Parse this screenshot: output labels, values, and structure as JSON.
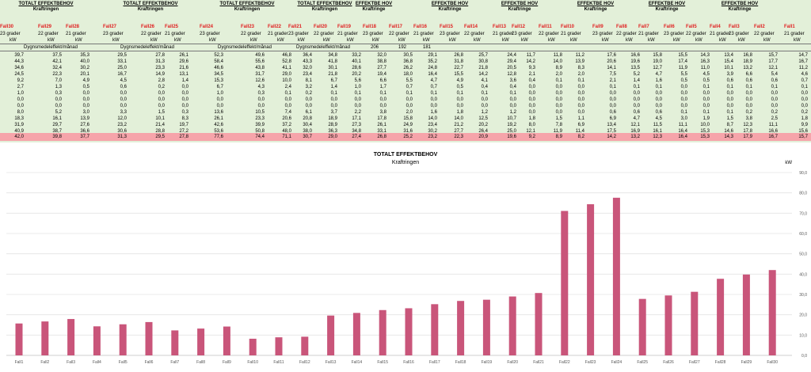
{
  "sheet": {
    "groups": [
      {
        "title": "TOTALT EFFEKTBEHOV",
        "subtitle": "Kraftringen",
        "cx": 58
      },
      {
        "title": "TOTALT EFFEKTBEHOV",
        "subtitle": "Kraftringen",
        "cx": 190
      },
      {
        "title": "TOTALT EFFEKTBEHOV",
        "subtitle": "Kraftringen",
        "cx": 312
      },
      {
        "title": "TOTALT EFFEKTBEHOV",
        "subtitle": "Kraftringen",
        "cx": 410
      },
      {
        "title": "EFFEKTBE HOV",
        "subtitle": "Kraftringe",
        "cx": 472
      },
      {
        "title": "EFFEKTBE HOV",
        "subtitle": "Kraftringe",
        "cx": 568
      },
      {
        "title": "EFFEKTBE HOV",
        "subtitle": "Kraftringe",
        "cx": 656
      },
      {
        "title": "EFFEKTBE HOV",
        "subtitle": "Kraftringe",
        "cx": 752
      },
      {
        "title": "EFFEKTBE HOV",
        "subtitle": "Kraftringe",
        "cx": 842
      },
      {
        "title": "EFFEKTBE HOV",
        "subtitle": "Kraftringe",
        "cx": 934
      }
    ],
    "fall_headers": [
      "Fall30",
      "Fall29",
      "Fall28",
      "Fall27",
      "Fall26",
      "Fall25",
      "Fall24",
      "Fall23",
      "Fall22",
      "Fall21",
      "Fall20",
      "Fall19",
      "Fall18",
      "Fall17",
      "Fall16",
      "Fall15",
      "Fall14",
      "Fall13",
      "Fall12",
      "Fall11",
      "Fall10",
      "Fall9",
      "Fall8",
      "Fall7",
      "Fall6",
      "Fall5",
      "Fall4",
      "Fall3",
      "Fall2",
      "Fall1"
    ],
    "temp_labels": [
      "23 grader",
      "22 grader",
      "21 grader"
    ],
    "unit": "kW",
    "dygn_label": "Dygnsmedeleffekt/månad",
    "dygn_values": [
      "206",
      "192",
      "181"
    ],
    "rows": [
      [
        "39,7",
        "37,5",
        "35,3",
        "29,5",
        "27,8",
        "26,1",
        "52,3",
        "49,6",
        "46,8",
        "36,4",
        "34,8",
        "33,2",
        "32,0",
        "30,5",
        "29,1",
        "26,8",
        "25,7",
        "24,4",
        "11,7",
        "11,8",
        "11,2",
        "17,6",
        "16,6",
        "15,8",
        "15,5",
        "14,3",
        "13,4",
        "16,8",
        "15,7",
        "14,7"
      ],
      [
        "44,3",
        "42,1",
        "40,0",
        "33,1",
        "31,3",
        "29,6",
        "58,4",
        "55,6",
        "52,8",
        "43,3",
        "41,8",
        "40,1",
        "38,8",
        "36,8",
        "35,2",
        "31,8",
        "30,8",
        "29,4",
        "14,2",
        "14,0",
        "13,9",
        "20,6",
        "19,6",
        "19,0",
        "17,4",
        "16,3",
        "15,4",
        "18,9",
        "17,7",
        "16,7"
      ],
      [
        "34,6",
        "32,4",
        "30,2",
        "25,0",
        "23,3",
        "21,6",
        "46,6",
        "43,8",
        "41,1",
        "32,0",
        "30,1",
        "28,6",
        "27,7",
        "26,2",
        "24,8",
        "22,7",
        "21,8",
        "20,5",
        "9,3",
        "8,9",
        "8,3",
        "14,1",
        "13,5",
        "12,7",
        "11,9",
        "11,0",
        "10,1",
        "13,2",
        "12,1",
        "11,2"
      ],
      [
        "24,5",
        "22,3",
        "20,1",
        "16,7",
        "14,9",
        "13,1",
        "34,5",
        "31,7",
        "29,0",
        "23,4",
        "21,8",
        "20,2",
        "19,4",
        "18,0",
        "16,4",
        "15,5",
        "14,2",
        "12,8",
        "2,1",
        "2,0",
        "2,0",
        "7,5",
        "5,2",
        "4,7",
        "5,5",
        "4,5",
        "3,9",
        "6,6",
        "5,4",
        "4,6"
      ],
      [
        "9,2",
        "7,0",
        "4,9",
        "4,5",
        "2,8",
        "1,4",
        "15,3",
        "12,6",
        "10,0",
        "8,1",
        "6,7",
        "5,6",
        "6,6",
        "5,5",
        "4,7",
        "4,9",
        "4,1",
        "3,6",
        "0,4",
        "0,1",
        "0,1",
        "2,1",
        "1,4",
        "1,6",
        "0,5",
        "0,5",
        "0,6",
        "0,6",
        "0,6",
        "0,7"
      ],
      [
        "2,7",
        "1,3",
        "0,5",
        "0,6",
        "0,2",
        "0,0",
        "6,7",
        "4,3",
        "2,4",
        "3,2",
        "1,4",
        "1,0",
        "1,7",
        "0,7",
        "0,7",
        "0,5",
        "0,4",
        "0,4",
        "0,0",
        "0,0",
        "0,0",
        "0,1",
        "0,1",
        "0,1",
        "0,0",
        "0,1",
        "0,1",
        "0,1",
        "0,1",
        "0,1"
      ],
      [
        "1,0",
        "0,3",
        "0,0",
        "0,0",
        "0,0",
        "0,0",
        "1,0",
        "0,3",
        "0,1",
        "0,2",
        "0,1",
        "0,1",
        "0,1",
        "0,1",
        "0,1",
        "0,1",
        "0,1",
        "0,1",
        "0,0",
        "0,0",
        "0,0",
        "0,0",
        "0,0",
        "0,0",
        "0,0",
        "0,0",
        "0,0",
        "0,0",
        "0,0",
        "0,0"
      ],
      [
        "0,0",
        "0,0",
        "0,0",
        "0,0",
        "0,0",
        "0,0",
        "0,0",
        "0,0",
        "0,0",
        "0,0",
        "0,0",
        "0,0",
        "0,0",
        "0,0",
        "0,0",
        "0,0",
        "0,0",
        "0,0",
        "0,0",
        "0,0",
        "0,0",
        "0,0",
        "0,0",
        "0,0",
        "0,0",
        "0,0",
        "0,0",
        "0,0",
        "0,0",
        "0,0"
      ],
      [
        "0,0",
        "0,0",
        "0,0",
        "0,0",
        "0,0",
        "0,0",
        "0,0",
        "0,0",
        "0,0",
        "0,0",
        "0,0",
        "0,0",
        "0,0",
        "0,0",
        "0,0",
        "0,0",
        "0,0",
        "0,0",
        "0,0",
        "0,0",
        "0,0",
        "0,0",
        "0,0",
        "0,0",
        "0,0",
        "0,0",
        "0,0",
        "0,0",
        "0,0",
        "0,0"
      ],
      [
        "8,0",
        "5,2",
        "3,0",
        "3,3",
        "1,5",
        "0,3",
        "13,6",
        "10,5",
        "7,4",
        "6,1",
        "3,7",
        "2,2",
        "3,8",
        "2,0",
        "1,6",
        "1,8",
        "1,2",
        "1,2",
        "0,0",
        "0,0",
        "0,0",
        "0,6",
        "0,6",
        "0,6",
        "0,1",
        "0,1",
        "0,1",
        "0,2",
        "0,2",
        "0,2"
      ],
      [
        "18,3",
        "16,1",
        "13,9",
        "12,0",
        "10,1",
        "8,3",
        "26,1",
        "23,3",
        "20,6",
        "20,8",
        "18,9",
        "17,1",
        "17,8",
        "15,8",
        "14,0",
        "14,0",
        "12,5",
        "10,7",
        "1,8",
        "1,5",
        "1,1",
        "6,9",
        "4,7",
        "4,5",
        "3,0",
        "1,9",
        "1,5",
        "3,8",
        "2,5",
        "1,8"
      ],
      [
        "31,9",
        "29,7",
        "27,6",
        "23,2",
        "21,4",
        "19,7",
        "42,6",
        "39,9",
        "37,2",
        "30,4",
        "28,9",
        "27,3",
        "26,1",
        "24,9",
        "23,4",
        "21,2",
        "20,2",
        "19,2",
        "8,0",
        "7,8",
        "6,9",
        "13,4",
        "12,1",
        "11,5",
        "11,1",
        "10,0",
        "8,7",
        "12,3",
        "11,1",
        "9,9"
      ],
      [
        "40,9",
        "38,7",
        "36,6",
        "30,6",
        "28,8",
        "27,2",
        "53,6",
        "50,8",
        "48,0",
        "38,0",
        "36,3",
        "34,8",
        "33,1",
        "31,6",
        "30,2",
        "27,7",
        "26,4",
        "25,0",
        "12,1",
        "11,9",
        "11,4",
        "17,5",
        "16,9",
        "16,1",
        "16,4",
        "15,3",
        "14,6",
        "17,8",
        "16,6",
        "15,6"
      ]
    ],
    "total_row": [
      "42,0",
      "39,8",
      "37,7",
      "31,3",
      "29,5",
      "27,8",
      "77,6",
      "74,4",
      "71,1",
      "30,7",
      "29,0",
      "27,4",
      "26,8",
      "25,2",
      "23,2",
      "22,3",
      "20,9",
      "19,6",
      "9,2",
      "8,9",
      "8,2",
      "14,2",
      "13,2",
      "12,3",
      "16,4",
      "15,3",
      "14,3",
      "17,9",
      "16,7",
      "15,7"
    ]
  },
  "chart_data": {
    "type": "bar",
    "title": "TOTALT EFFEKTBEHOV",
    "subtitle": "Kraftringen",
    "ylabel": "kW",
    "xlabel": "",
    "ylim": [
      0,
      90
    ],
    "yticks": [
      "0,0",
      "10,0",
      "20,0",
      "30,0",
      "40,0",
      "50,0",
      "60,0",
      "70,0",
      "80,0",
      "90,0"
    ],
    "grid": true,
    "bar_color": "#c9557a",
    "categories": [
      "Fall1",
      "Fall2",
      "Fall3",
      "Fall4",
      "Fall5",
      "Fall6",
      "Fall7",
      "Fall8",
      "Fall9",
      "Fall10",
      "Fall11",
      "Fall12",
      "Fall13",
      "Fall14",
      "Fall15",
      "Fall16",
      "Fall17",
      "Fall18",
      "Fall19",
      "Fall20",
      "Fall21",
      "Fall22",
      "Fall23",
      "Fall24",
      "Fall25",
      "Fall26",
      "Fall27",
      "Fall28",
      "Fall29",
      "Fall30"
    ],
    "values": [
      15.7,
      16.7,
      17.9,
      14.3,
      15.3,
      16.4,
      12.3,
      13.2,
      14.2,
      8.2,
      8.9,
      9.2,
      19.6,
      20.9,
      22.3,
      23.2,
      25.2,
      26.8,
      27.4,
      29.0,
      30.7,
      71.1,
      74.4,
      77.6,
      27.8,
      29.5,
      31.3,
      37.7,
      39.8,
      42.0
    ]
  }
}
